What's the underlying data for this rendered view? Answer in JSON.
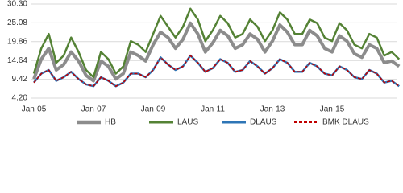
{
  "chart_data": {
    "type": "line",
    "categories": [
      "Jan-05",
      null,
      null,
      null,
      null,
      null,
      null,
      null,
      "Jan-07",
      null,
      null,
      null,
      null,
      null,
      null,
      null,
      "Jan-09",
      null,
      null,
      null,
      null,
      null,
      null,
      null,
      "Jan-11",
      null,
      null,
      null,
      null,
      null,
      null,
      null,
      "Jan-13",
      null,
      null,
      null,
      null,
      null,
      null,
      null,
      "Jan-15",
      null,
      null,
      null,
      null,
      null,
      null,
      null,
      null,
      null
    ],
    "series": [
      {
        "name": "HB",
        "color": "#8c8c8c",
        "width": 4,
        "dashed": false,
        "values": [
          9.5,
          15,
          18,
          12,
          13.5,
          17,
          14.5,
          10.5,
          9,
          14.5,
          13,
          9.5,
          11,
          17,
          16,
          14.5,
          19,
          22.5,
          21,
          18,
          20.5,
          25,
          22,
          17,
          19.5,
          23,
          21.5,
          18,
          19,
          22,
          20.5,
          17,
          20,
          24.5,
          22.5,
          19,
          19,
          23,
          21.5,
          18,
          17,
          21.5,
          20,
          16.5,
          15.5,
          19,
          18,
          14,
          14.5,
          13
        ]
      },
      {
        "name": "LAUS",
        "color": "#548235",
        "width": 2.5,
        "dashed": false,
        "values": [
          11,
          18,
          22,
          14,
          16,
          21,
          17,
          12,
          10,
          17,
          15,
          11,
          13,
          20,
          19,
          17,
          22,
          27,
          24,
          21,
          24,
          29,
          26,
          20,
          23,
          27,
          25,
          21,
          22,
          26,
          24,
          20,
          23,
          28,
          26,
          22,
          22,
          26,
          25,
          21,
          20,
          25,
          23,
          19,
          18,
          22,
          21,
          16,
          17,
          15
        ]
      },
      {
        "name": "DLAUS",
        "color": "#2e75b6",
        "width": 2.5,
        "dashed": false,
        "values": [
          8.5,
          11,
          12,
          9,
          10,
          11.5,
          9.5,
          8,
          7.5,
          10,
          9,
          7.5,
          8.5,
          11,
          11,
          10,
          12,
          15.5,
          13.5,
          12,
          13,
          16,
          14,
          11.5,
          12.5,
          15,
          14,
          11.5,
          12,
          14.5,
          13,
          11,
          12.5,
          15,
          14,
          11.5,
          11.5,
          14,
          13,
          11,
          10.5,
          13,
          12,
          10,
          9.5,
          12,
          11,
          8.5,
          9,
          7.5
        ]
      },
      {
        "name": "BMK DLAUS",
        "color": "#c00000",
        "width": 1.5,
        "dashed": true,
        "values": [
          8.5,
          11,
          12,
          9,
          10,
          11.5,
          9.5,
          8,
          7.5,
          10,
          9,
          7.5,
          8.5,
          11,
          11,
          10,
          12,
          15.5,
          13.5,
          12,
          13,
          16,
          14,
          11.5,
          12.5,
          15,
          14,
          11.5,
          12,
          14.5,
          13,
          11,
          12.5,
          15,
          14,
          11.5,
          11.5,
          14,
          13,
          11,
          10.5,
          13,
          12,
          10,
          9.5,
          12,
          11,
          8.5,
          9,
          7.5
        ]
      }
    ],
    "ylim": [
      4.2,
      30.3
    ],
    "yticks": [
      {
        "value": 4.2,
        "label": "4.20"
      },
      9.42,
      14.64,
      19.86,
      25.08,
      {
        "value": 30.3,
        "label": "30.30"
      }
    ],
    "grid": true,
    "legend": "bottom"
  }
}
